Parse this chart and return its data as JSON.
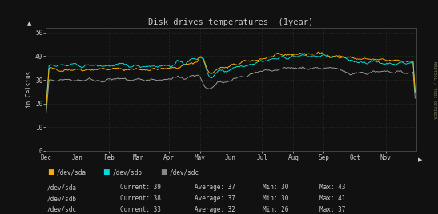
{
  "title": "Disk drives temperatures  (1year)",
  "ylabel": "in Celsius",
  "xlabel_months": [
    "Dec",
    "Jan",
    "Feb",
    "Mar",
    "Apr",
    "May",
    "Jun",
    "Jul",
    "Aug",
    "Sep",
    "Oct",
    "Nov"
  ],
  "yticks": [
    0,
    10,
    20,
    30,
    40,
    50
  ],
  "ylim": [
    0,
    52
  ],
  "xlim": [
    0,
    365
  ],
  "bg_color": "#111111",
  "plot_bg_color": "#111111",
  "grid_color": "#336633",
  "text_color": "#cccccc",
  "line_sda_color": "#ffaa00",
  "line_sdb_color": "#00dddd",
  "line_sdc_color": "#999999",
  "title_color": "#cccccc",
  "sidebar_text": "RRDTOOL / TOBI OETIKER",
  "sidebar_color": "#777755",
  "legend": [
    {
      "label": "/dev/sda",
      "color": "#ffaa00"
    },
    {
      "label": "/dev/sdb",
      "color": "#00dddd"
    },
    {
      "label": "/dev/sdc",
      "color": "#888888"
    }
  ],
  "stats": [
    {
      "dev": "/dev/sda",
      "current": 39,
      "average": 37,
      "min": 30,
      "max": 43
    },
    {
      "dev": "/dev/sdb",
      "current": 38,
      "average": 37,
      "min": 30,
      "max": 41
    },
    {
      "dev": "/dev/sdc",
      "current": 33,
      "average": 32,
      "min": 26,
      "max": 37
    }
  ],
  "month_positions": [
    0,
    31,
    62,
    91,
    121,
    152,
    182,
    213,
    244,
    274,
    305,
    335
  ],
  "n_points": 365
}
